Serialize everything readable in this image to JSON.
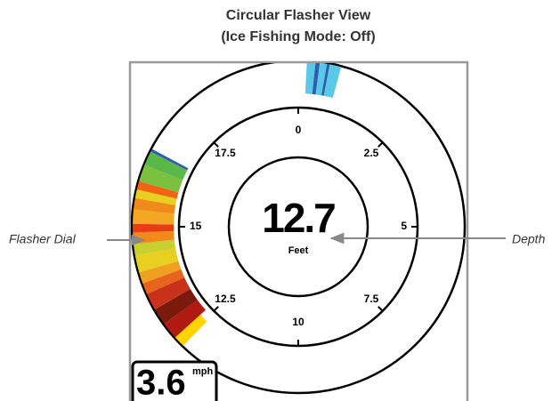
{
  "header": {
    "title": "Circular Flasher View",
    "subtitle": "(Ice Fishing Mode: Off)"
  },
  "callouts": {
    "left": "Flasher Dial",
    "right": "Depth"
  },
  "dial": {
    "ticks": [
      "0",
      "2.5",
      "5",
      "7.5",
      "10",
      "12.5",
      "15",
      "17.5"
    ]
  },
  "depth": {
    "value": "12.7",
    "unit": "Feet"
  },
  "speed": {
    "value": "3.6",
    "unit": "mph"
  }
}
